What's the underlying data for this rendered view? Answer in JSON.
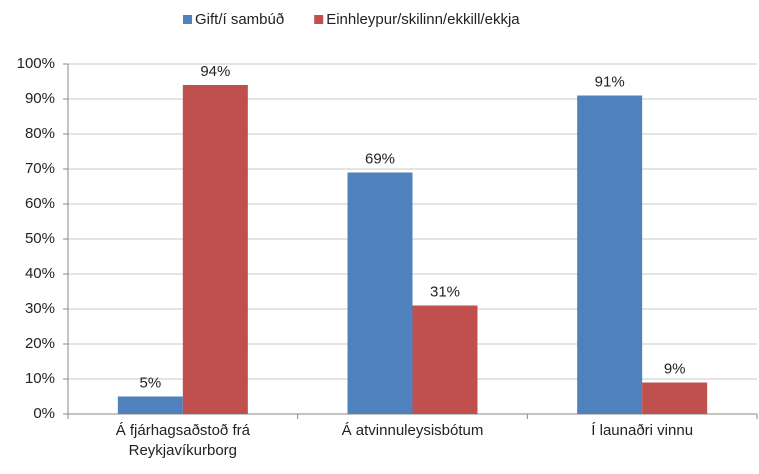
{
  "chart_data": {
    "type": "bar",
    "categories": [
      "Á fjárhagsaðstoð frá Reykjavíkurborg",
      "Á atvinnuleysisbótum",
      "Í launaðri vinnu"
    ],
    "series": [
      {
        "name": "Gift/í sambúð",
        "color": "#4f81bd",
        "values": [
          5,
          69,
          91
        ],
        "value_labels": [
          "5%",
          "69%",
          "91%"
        ]
      },
      {
        "name": "Einhleypur/skilinn/ekkill/ekkja",
        "color": "#c0504d",
        "values": [
          94,
          31,
          9
        ],
        "value_labels": [
          "94%",
          "31%",
          "9%"
        ]
      }
    ],
    "ylim": [
      0,
      100
    ],
    "yticks": [
      {
        "value": 0,
        "label": "0%"
      },
      {
        "value": 10,
        "label": "10%"
      },
      {
        "value": 20,
        "label": "20%"
      },
      {
        "value": 30,
        "label": "30%"
      },
      {
        "value": 40,
        "label": "40%"
      },
      {
        "value": 50,
        "label": "50%"
      },
      {
        "value": 60,
        "label": "60%"
      },
      {
        "value": 70,
        "label": "70%"
      },
      {
        "value": 80,
        "label": "80%"
      },
      {
        "value": 90,
        "label": "90%"
      },
      {
        "value": 100,
        "label": "100%"
      }
    ],
    "grid": true,
    "legend": "top"
  }
}
